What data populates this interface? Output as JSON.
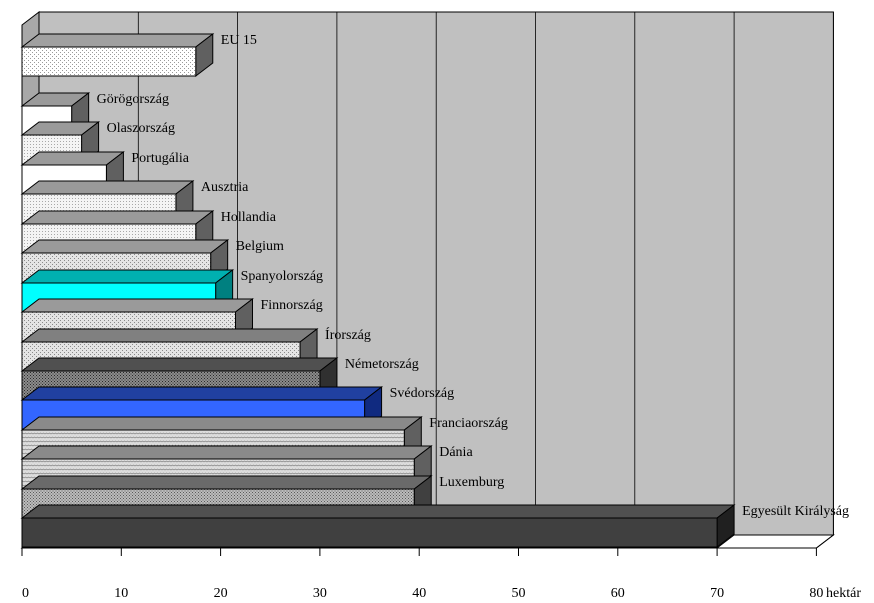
{
  "chart_data": {
    "type": "bar",
    "orientation": "horizontal",
    "three_d": true,
    "categories": [
      "EU 15",
      "Görögország",
      "Olaszország",
      "Portugália",
      "Ausztria",
      "Hollandia",
      "Belgium",
      "Spanyolország",
      "Finnország",
      "Írország",
      "Németország",
      "Svédország",
      "Franciaország",
      "Dánia",
      "Luxemburg",
      "Egyesült Királyság"
    ],
    "values": [
      17.5,
      5,
      6,
      8.5,
      15.5,
      17.5,
      19,
      19.5,
      21.5,
      28,
      30,
      34.5,
      38.5,
      39.5,
      39.5,
      70
    ],
    "xlabel": "hektár",
    "xlim": [
      0,
      80
    ],
    "xticks": [
      0,
      10,
      20,
      30,
      40,
      50,
      60,
      70,
      80
    ],
    "grid": true,
    "legend": "none",
    "colors": {
      "background_wall": "#c0c0c0",
      "floor": "#ffffff",
      "spanyolorszag": "#00ffff",
      "svedorszag": "#3366ff",
      "egyesult_kiralysag": "#404040"
    }
  }
}
